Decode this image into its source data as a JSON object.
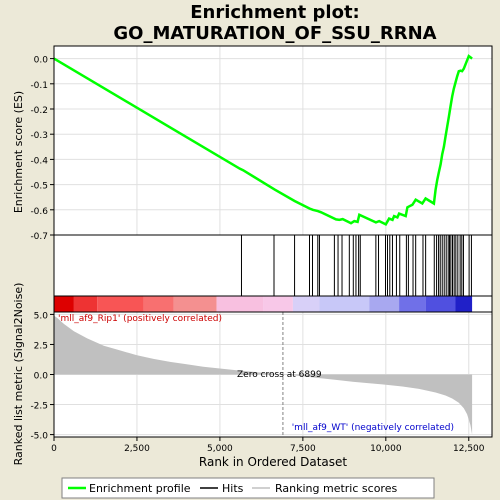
{
  "title_line1": "Enrichment plot:",
  "title_line2": "GO_MATURATION_OF_SSU_RRNA",
  "colors": {
    "background": "#ece9d8",
    "es_line": "#00ff00",
    "hits": "#000000",
    "metric_fill": "#c0c0c0",
    "zero_line": "#808080",
    "pos_label": "#cc0000",
    "neg_label": "#0000cc"
  },
  "chart_data": [
    {
      "type": "line",
      "panel": "enrichment-profile",
      "ylabel": "Enrichment score (ES)",
      "xlim": [
        0,
        13200
      ],
      "ylim": [
        -0.7,
        0.05
      ],
      "yticks": [
        "0.0",
        "-0.1",
        "-0.2",
        "-0.3",
        "-0.4",
        "-0.5",
        "-0.6",
        "-0.7"
      ],
      "ytick_values": [
        0.0,
        -0.1,
        -0.2,
        -0.3,
        -0.4,
        -0.5,
        -0.6,
        -0.7
      ],
      "grid": true,
      "series": [
        {
          "name": "Enrichment profile",
          "x": [
            0,
            5600,
            5700,
            6650,
            7250,
            7700,
            7800,
            7950,
            8050,
            8500,
            8600,
            8700,
            8950,
            9050,
            9150,
            9200,
            9700,
            9800,
            10000,
            10100,
            10200,
            10250,
            10350,
            10400,
            10600,
            10650,
            10800,
            10900,
            11100,
            11200,
            11450,
            11500,
            11550,
            11600,
            11650,
            11700,
            11750,
            11800,
            11850,
            11900,
            11950,
            12000,
            12050,
            12100,
            12150,
            12200,
            12250,
            12300,
            12350,
            12500,
            12550,
            12600
          ],
          "y": [
            0.0,
            -0.437,
            -0.443,
            -0.52,
            -0.565,
            -0.595,
            -0.6,
            -0.605,
            -0.61,
            -0.638,
            -0.64,
            -0.637,
            -0.653,
            -0.645,
            -0.648,
            -0.62,
            -0.65,
            -0.645,
            -0.658,
            -0.635,
            -0.64,
            -0.625,
            -0.63,
            -0.615,
            -0.625,
            -0.59,
            -0.58,
            -0.56,
            -0.575,
            -0.555,
            -0.575,
            -0.52,
            -0.48,
            -0.45,
            -0.42,
            -0.38,
            -0.35,
            -0.31,
            -0.27,
            -0.23,
            -0.19,
            -0.15,
            -0.12,
            -0.095,
            -0.07,
            -0.05,
            -0.048,
            -0.05,
            -0.04,
            0.01,
            0.005,
            0.0
          ]
        }
      ],
      "hit_positions": [
        5650,
        6630,
        7250,
        7700,
        7790,
        7950,
        8000,
        8450,
        8560,
        8680,
        8900,
        9020,
        9100,
        9180,
        9230,
        9700,
        9780,
        9990,
        10050,
        10120,
        10200,
        10320,
        10420,
        10620,
        10680,
        10820,
        10900,
        11120,
        11200,
        11460,
        11530,
        11590,
        11640,
        11700,
        11760,
        11820,
        11880,
        11920,
        11960,
        12010,
        12060,
        12110,
        12170,
        12240,
        12290,
        12340,
        12510,
        12580
      ]
    },
    {
      "type": "area",
      "panel": "ranked-list-metric",
      "xlabel": "Rank in Ordered Dataset",
      "ylabel": "Ranked list metric (Signal2Noise)",
      "xlim": [
        0,
        13200
      ],
      "ylim": [
        -5.2,
        5.2
      ],
      "xticks": [
        "0",
        "2,500",
        "5,000",
        "7,500",
        "10,000",
        "12,500"
      ],
      "xtick_values": [
        0,
        2500,
        5000,
        7500,
        10000,
        12500
      ],
      "yticks": [
        "5.0",
        "2.5",
        "0.0",
        "-2.5",
        "-5.0"
      ],
      "ytick_values": [
        5.0,
        2.5,
        0.0,
        -2.5,
        -5.0
      ],
      "grid": true,
      "series": [
        {
          "name": "Ranking metric scores",
          "x": [
            0,
            100,
            300,
            600,
            1000,
            1500,
            2000,
            2500,
            3000,
            3500,
            4000,
            4500,
            5000,
            5500,
            6000,
            6500,
            6899,
            7500,
            8000,
            8500,
            9000,
            9500,
            10000,
            10500,
            11000,
            11500,
            11800,
            12000,
            12200,
            12350,
            12450,
            12550,
            12600
          ],
          "y": [
            4.9,
            4.7,
            4.2,
            3.6,
            3.0,
            2.4,
            2.0,
            1.6,
            1.3,
            1.05,
            0.85,
            0.65,
            0.5,
            0.35,
            0.22,
            0.1,
            0.0,
            -0.15,
            -0.3,
            -0.45,
            -0.6,
            -0.72,
            -0.85,
            -1.0,
            -1.2,
            -1.5,
            -1.75,
            -2.0,
            -2.35,
            -2.8,
            -3.3,
            -4.2,
            -5.0
          ]
        }
      ],
      "zero_cross": 6899,
      "zero_cross_label": "Zero cross at 6899",
      "pos_label": "'mll_af9_Rip1' (positively correlated)",
      "neg_label": "'mll_af9_WT' (negatively correlated)"
    }
  ],
  "legend": {
    "items": [
      {
        "label": "Enrichment profile",
        "color": "#00ff00"
      },
      {
        "label": "Hits",
        "color": "#000000"
      },
      {
        "label": "Ranking metric scores",
        "color": "#c0c0c0"
      }
    ]
  }
}
